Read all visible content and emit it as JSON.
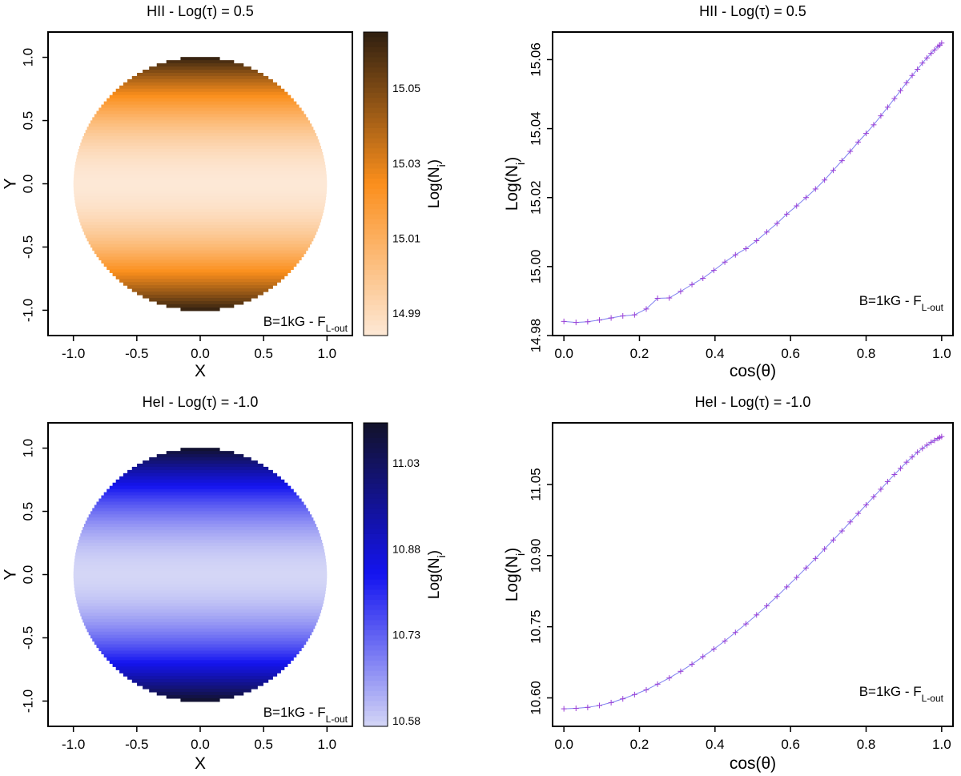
{
  "chart_data": [
    {
      "type": "heatmap",
      "panel": "top-left",
      "title": "HII - Log(τ) = 0.5",
      "xlabel": "X",
      "ylabel": "Y",
      "xlim": [
        -1.2,
        1.2
      ],
      "ylim": [
        -1.2,
        1.2
      ],
      "xticks": [
        "-1.0",
        "-0.5",
        "0.0",
        "0.5",
        "1.0"
      ],
      "yticks": [
        "-1.0",
        "-0.5",
        "0.0",
        "0.5",
        "1.0"
      ],
      "colorbar": {
        "label_main": "Log(N",
        "label_sub": "i",
        "label_end": ")",
        "range": [
          14.984,
          15.065
        ],
        "ticks": [
          "14.99",
          "15.01",
          "15.03",
          "15.05"
        ],
        "colors": [
          "#fde8d6",
          "#fb8f1c",
          "#2f1f10"
        ]
      },
      "annotation_main": "B=1kG - F",
      "annotation_sub": "L-out"
    },
    {
      "type": "line",
      "panel": "top-right",
      "title": "HII - Log(τ) = 0.5",
      "xlabel": "cos(θ)",
      "ylabel_main": "Log(N",
      "ylabel_sub": "i",
      "ylabel_end": ")",
      "xlim": [
        -0.03,
        1.03
      ],
      "ylim": [
        14.98,
        15.068
      ],
      "xticks": [
        "0.0",
        "0.2",
        "0.4",
        "0.6",
        "0.8",
        "1.0"
      ],
      "yticks": [
        "14.98",
        "15.00",
        "15.02",
        "15.04",
        "15.06"
      ],
      "series": [
        {
          "color": "#8080f0",
          "marker_color": "#9a3fd6",
          "x": [
            0.0,
            0.032,
            0.063,
            0.094,
            0.125,
            0.156,
            0.187,
            0.218,
            0.248,
            0.279,
            0.309,
            0.339,
            0.368,
            0.397,
            0.426,
            0.454,
            0.482,
            0.51,
            0.537,
            0.564,
            0.59,
            0.616,
            0.641,
            0.666,
            0.69,
            0.713,
            0.736,
            0.758,
            0.779,
            0.8,
            0.82,
            0.839,
            0.857,
            0.875,
            0.891,
            0.907,
            0.922,
            0.936,
            0.949,
            0.961,
            0.972,
            0.981,
            0.99,
            0.995,
            1.0
          ],
          "y": [
            14.9841,
            14.9838,
            14.984,
            14.9845,
            14.9851,
            14.9857,
            14.986,
            14.9877,
            14.9908,
            14.9909,
            14.9928,
            14.9948,
            14.9966,
            14.9989,
            15.0013,
            15.0034,
            15.0052,
            15.0075,
            15.01,
            15.0125,
            15.0152,
            15.0176,
            15.02,
            15.0225,
            15.0251,
            15.0279,
            15.0307,
            15.0334,
            15.0361,
            15.0386,
            15.0411,
            15.0437,
            15.0462,
            15.0487,
            15.051,
            15.0533,
            15.0554,
            15.0572,
            15.059,
            15.0605,
            15.0618,
            15.0628,
            15.0638,
            15.0642,
            15.0648
          ]
        }
      ],
      "annotation_main": "B=1kG - F",
      "annotation_sub": "L-out"
    },
    {
      "type": "heatmap",
      "panel": "bottom-left",
      "title": "HeI - Log(τ) = -1.0",
      "xlabel": "X",
      "ylabel": "Y",
      "xlim": [
        -1.2,
        1.2
      ],
      "ylim": [
        -1.2,
        1.2
      ],
      "xticks": [
        "-1.0",
        "-0.5",
        "0.0",
        "0.5",
        "1.0"
      ],
      "yticks": [
        "-1.0",
        "-0.5",
        "0.0",
        "0.5",
        "1.0"
      ],
      "colorbar": {
        "label_main": "Log(N",
        "label_sub": "i",
        "label_end": ")",
        "range": [
          10.57,
          11.1
        ],
        "ticks": [
          "10.58",
          "10.73",
          "10.88",
          "11.03"
        ],
        "colors": [
          "#d4d6f6",
          "#1414f0",
          "#12122a"
        ]
      },
      "annotation_main": "B=1kG - F",
      "annotation_sub": "L-out"
    },
    {
      "type": "line",
      "panel": "bottom-right",
      "title": "HeI - Log(τ) = -1.0",
      "xlabel": "cos(θ)",
      "ylabel_main": "Log(N",
      "ylabel_sub": "i",
      "ylabel_end": ")",
      "xlim": [
        -0.03,
        1.03
      ],
      "ylim": [
        10.54,
        11.18
      ],
      "xticks": [
        "0.0",
        "0.2",
        "0.4",
        "0.6",
        "0.8",
        "1.0"
      ],
      "yticks": [
        "10.60",
        "10.75",
        "10.90",
        "11.05"
      ],
      "series": [
        {
          "color": "#8080f0",
          "marker_color": "#9a3fd6",
          "x": [
            0.0,
            0.032,
            0.063,
            0.094,
            0.125,
            0.156,
            0.187,
            0.218,
            0.248,
            0.279,
            0.309,
            0.339,
            0.368,
            0.397,
            0.426,
            0.454,
            0.482,
            0.51,
            0.537,
            0.564,
            0.59,
            0.616,
            0.641,
            0.666,
            0.69,
            0.713,
            0.736,
            0.758,
            0.779,
            0.8,
            0.82,
            0.839,
            0.857,
            0.875,
            0.891,
            0.907,
            0.922,
            0.936,
            0.949,
            0.961,
            0.972,
            0.981,
            0.99,
            0.995,
            1.0
          ],
          "y": [
            10.577,
            10.578,
            10.58,
            10.584,
            10.59,
            10.598,
            10.607,
            10.617,
            10.629,
            10.642,
            10.656,
            10.671,
            10.687,
            10.703,
            10.72,
            10.738,
            10.756,
            10.775,
            10.794,
            10.814,
            10.834,
            10.854,
            10.874,
            10.894,
            10.914,
            10.933,
            10.952,
            10.971,
            10.989,
            11.007,
            11.024,
            11.04,
            11.056,
            11.071,
            11.084,
            11.097,
            11.108,
            11.118,
            11.126,
            11.133,
            11.139,
            11.143,
            11.147,
            11.149,
            11.151
          ]
        }
      ],
      "annotation_main": "B=1kG - F",
      "annotation_sub": "L-out"
    }
  ]
}
